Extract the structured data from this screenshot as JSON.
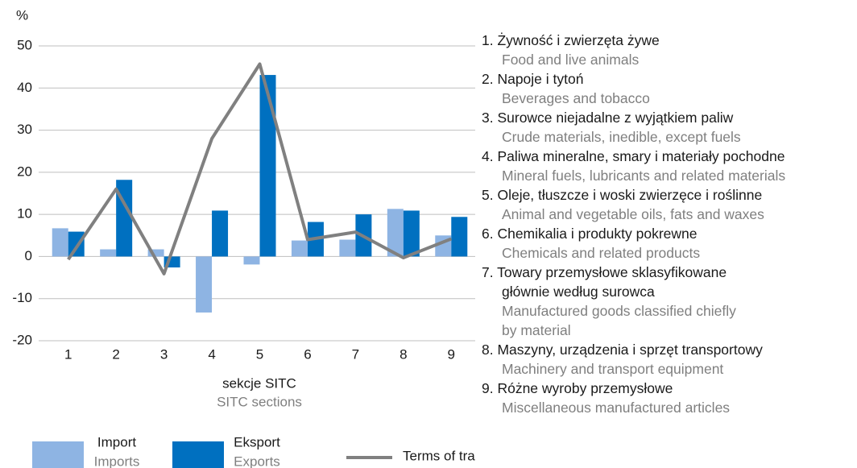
{
  "chart_data": {
    "type": "bar_line",
    "y_unit": "%",
    "x_label": "sekcje SITC",
    "x_label_en": "SITC sections",
    "categories": [
      "1",
      "2",
      "3",
      "4",
      "5",
      "6",
      "7",
      "8",
      "9"
    ],
    "series": [
      {
        "name": "Import",
        "name_en": "Imports",
        "kind": "bar",
        "color": "#8eb4e3",
        "values": [
          6.7,
          1.7,
          1.7,
          -13.3,
          -1.9,
          3.8,
          4.0,
          11.3,
          5.0
        ]
      },
      {
        "name": "Eksport",
        "name_en": "Exports",
        "kind": "bar",
        "color": "#0070c0",
        "values": [
          5.9,
          18.2,
          -2.6,
          10.9,
          43.1,
          8.2,
          10.0,
          10.9,
          9.4
        ]
      },
      {
        "name": "Terms of trade",
        "kind": "line",
        "color": "#808080",
        "values": [
          -0.7,
          16.0,
          -4.1,
          28.0,
          45.7,
          4.0,
          5.8,
          -0.3,
          4.2
        ]
      }
    ],
    "ylim": [
      -20,
      50
    ],
    "yticks": [
      50,
      40,
      30,
      20,
      10,
      0,
      -10,
      -20
    ],
    "grid": true,
    "sections": [
      {
        "pl": [
          "1. Żywność i zwierzęta żywe"
        ],
        "en": [
          "Food and live animals"
        ]
      },
      {
        "pl": [
          "2. Napoje i tytoń"
        ],
        "en": [
          "Beverages and tobacco"
        ]
      },
      {
        "pl": [
          "3. Surowce niejadalne z wyjątkiem paliw"
        ],
        "en": [
          "Crude materials, inedible, except fuels"
        ]
      },
      {
        "pl": [
          "4. Paliwa mineralne, smary i materiały pochodne"
        ],
        "en": [
          "Mineral fuels, lubricants and related materials"
        ]
      },
      {
        "pl": [
          "5. Oleje, tłuszcze i woski zwierzęce i roślinne"
        ],
        "en": [
          "Animal and vegetable oils, fats and waxes"
        ]
      },
      {
        "pl": [
          "6. Chemikalia i produkty pokrewne"
        ],
        "en": [
          "Chemicals and related products"
        ]
      },
      {
        "pl": [
          "7. Towary przemysłowe sklasyfikowane",
          "głównie według surowca"
        ],
        "en": [
          "Manufactured goods classified chiefly",
          "by material"
        ]
      },
      {
        "pl": [
          "8. Maszyny, urządzenia i sprzęt transportowy"
        ],
        "en": [
          "Machinery and transport equipment"
        ]
      },
      {
        "pl": [
          "9. Różne wyroby przemysłowe"
        ],
        "en": [
          "Miscellaneous manufactured articles"
        ]
      }
    ]
  }
}
